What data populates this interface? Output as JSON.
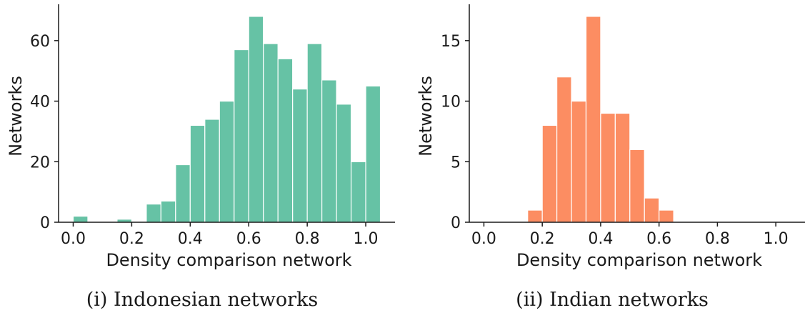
{
  "chart_data": [
    {
      "type": "bar",
      "caption": "(i) Indonesian networks",
      "xlabel": "Density comparison network",
      "ylabel": "Networks",
      "color": "#66c2a5",
      "bin_width": 0.05,
      "bin_starts": [
        0.0,
        0.05,
        0.1,
        0.15,
        0.2,
        0.25,
        0.3,
        0.35,
        0.4,
        0.45,
        0.5,
        0.55,
        0.6,
        0.65,
        0.7,
        0.75,
        0.8,
        0.85,
        0.9,
        0.95,
        1.0
      ],
      "values": [
        2,
        0,
        0,
        1,
        0,
        6,
        7,
        19,
        32,
        34,
        40,
        57,
        68,
        59,
        54,
        44,
        59,
        47,
        39,
        20,
        45
      ],
      "xlim": [
        -0.05,
        1.1
      ],
      "ylim": [
        0,
        72
      ],
      "xticks": [
        "0.0",
        "0.2",
        "0.4",
        "0.6",
        "0.8",
        "1.0"
      ],
      "yticks": [
        "0",
        "20",
        "40",
        "60"
      ]
    },
    {
      "type": "bar",
      "caption": "(ii) Indian networks",
      "xlabel": "Density comparison network",
      "ylabel": "Networks",
      "color": "#fc8d62",
      "bin_width": 0.05,
      "bin_starts": [
        0.15,
        0.2,
        0.25,
        0.3,
        0.35,
        0.4,
        0.45,
        0.5,
        0.55,
        0.6
      ],
      "values": [
        1,
        8,
        12,
        10,
        17,
        9,
        9,
        6,
        2,
        1
      ],
      "xlim": [
        -0.05,
        1.1
      ],
      "ylim": [
        0,
        18
      ],
      "xticks": [
        "0.0",
        "0.2",
        "0.4",
        "0.6",
        "0.8",
        "1.0"
      ],
      "yticks": [
        "0",
        "5",
        "10",
        "15"
      ]
    }
  ]
}
